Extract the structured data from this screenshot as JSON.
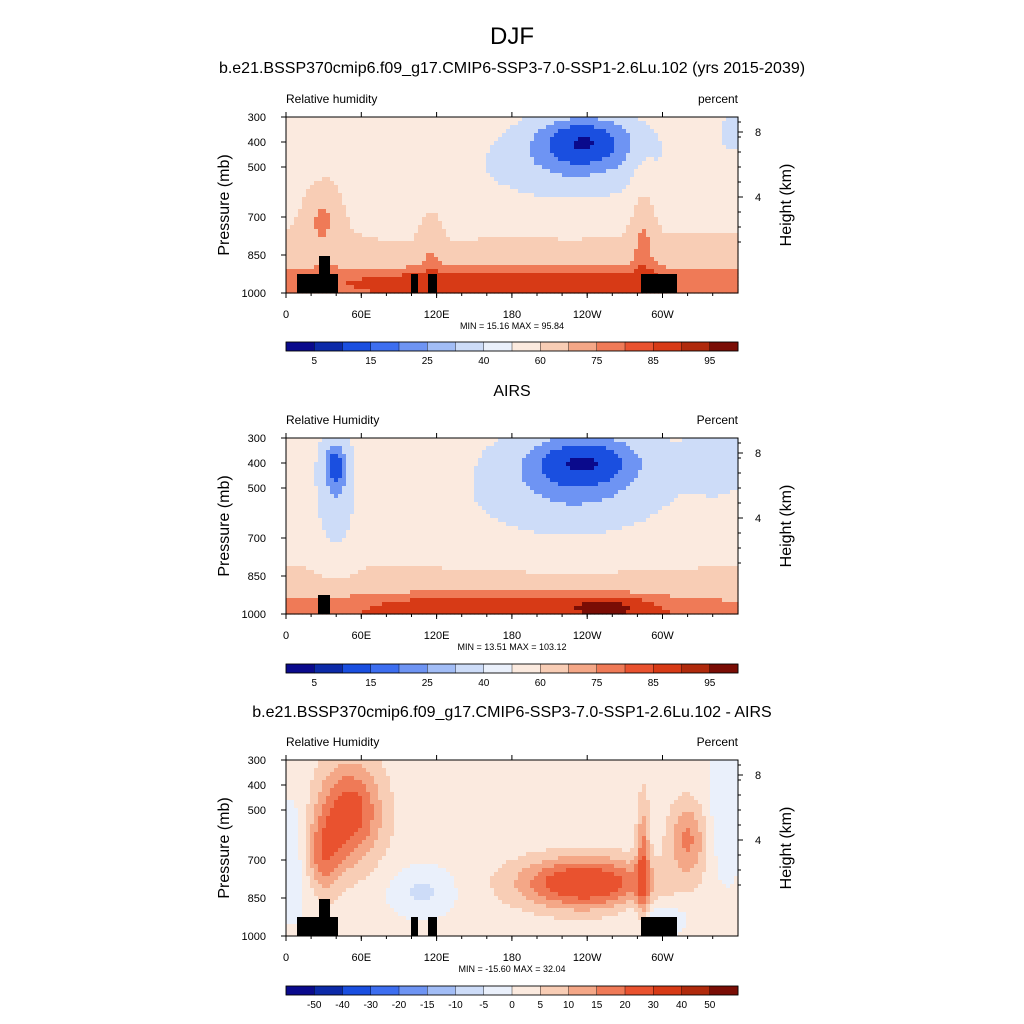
{
  "page": {
    "title": "DJF"
  },
  "colorbars": [
    {
      "labels": [
        "5",
        "15",
        "25",
        "40",
        "60",
        "75",
        "85",
        "95"
      ],
      "colors": [
        "#0a0a8c",
        "#0c2aa8",
        "#1a4fe0",
        "#3d6ef0",
        "#6e94f3",
        "#a2bdf6",
        "#cddcf8",
        "#eaf0fb",
        "#fbeadf",
        "#f8cdb5",
        "#f4a787",
        "#ef7a57",
        "#e9522f",
        "#d73a16",
        "#b02a0c",
        "#7a0d05"
      ]
    },
    {
      "labels": [
        "5",
        "15",
        "25",
        "40",
        "60",
        "75",
        "85",
        "95"
      ],
      "colors": [
        "#0a0a8c",
        "#0c2aa8",
        "#1a4fe0",
        "#3d6ef0",
        "#6e94f3",
        "#a2bdf6",
        "#cddcf8",
        "#eaf0fb",
        "#fbeadf",
        "#f8cdb5",
        "#f4a787",
        "#ef7a57",
        "#e9522f",
        "#d73a16",
        "#b02a0c",
        "#7a0d05"
      ]
    },
    {
      "labels": [
        "-50",
        "-40",
        "-30",
        "-20",
        "-15",
        "-10",
        "-5",
        "0",
        "5",
        "10",
        "15",
        "20",
        "30",
        "40",
        "50"
      ],
      "colors": [
        "#0a0a8c",
        "#0c2aa8",
        "#1a4fe0",
        "#3d6ef0",
        "#6e94f3",
        "#a2bdf6",
        "#cddcf8",
        "#eaf0fb",
        "#fbeadf",
        "#f8cdb5",
        "#f4a787",
        "#ef7a57",
        "#e9522f",
        "#d73a16",
        "#b02a0c",
        "#7a0d05"
      ]
    }
  ],
  "chart_data": [
    {
      "type": "heatmap",
      "title": "b.e21.BSSP370cmip6.f09_g17.CMIP6-SSP3-7.0-SSP1-2.6Lu.102 (yrs 2015-2039)",
      "left_label": "Relative humidity",
      "right_label": "percent",
      "ylabel": "Pressure (mb)",
      "ylabel_right": "Height (km)",
      "y_ticks": [
        "300",
        "400",
        "500",
        "700",
        "850",
        "1000"
      ],
      "y_ticks_right": [
        "8",
        "4"
      ],
      "x_ticks": [
        "0",
        "60E",
        "120E",
        "180",
        "120W",
        "60W"
      ],
      "stats": "MIN =  15.16  MAX =  95.84",
      "min": 15.16,
      "max": 95.84,
      "field": "model",
      "topography": true
    },
    {
      "type": "heatmap",
      "title": "AIRS",
      "left_label": "Relative Humidity",
      "right_label": "Percent",
      "ylabel": "Pressure (mb)",
      "ylabel_right": "Height (km)",
      "y_ticks": [
        "300",
        "400",
        "500",
        "700",
        "850",
        "1000"
      ],
      "y_ticks_right": [
        "8",
        "4"
      ],
      "x_ticks": [
        "0",
        "60E",
        "120E",
        "180",
        "120W",
        "60W"
      ],
      "stats": "MIN =  13.51  MAX = 103.12",
      "min": 13.51,
      "max": 103.12,
      "field": "obs",
      "topography": true
    },
    {
      "type": "heatmap",
      "title": "b.e21.BSSP370cmip6.f09_g17.CMIP6-SSP3-7.0-SSP1-2.6Lu.102 - AIRS",
      "left_label": "Relative Humidity",
      "right_label": "Percent",
      "ylabel": "Pressure (mb)",
      "ylabel_right": "Height (km)",
      "y_ticks": [
        "300",
        "400",
        "500",
        "700",
        "850",
        "1000"
      ],
      "y_ticks_right": [
        "8",
        "4"
      ],
      "x_ticks": [
        "0",
        "60E",
        "120E",
        "180",
        "120W",
        "60W"
      ],
      "stats": "MIN = -15.60  MAX =  32.04",
      "min": -15.6,
      "max": 32.04,
      "field": "diff",
      "topography": true
    }
  ]
}
